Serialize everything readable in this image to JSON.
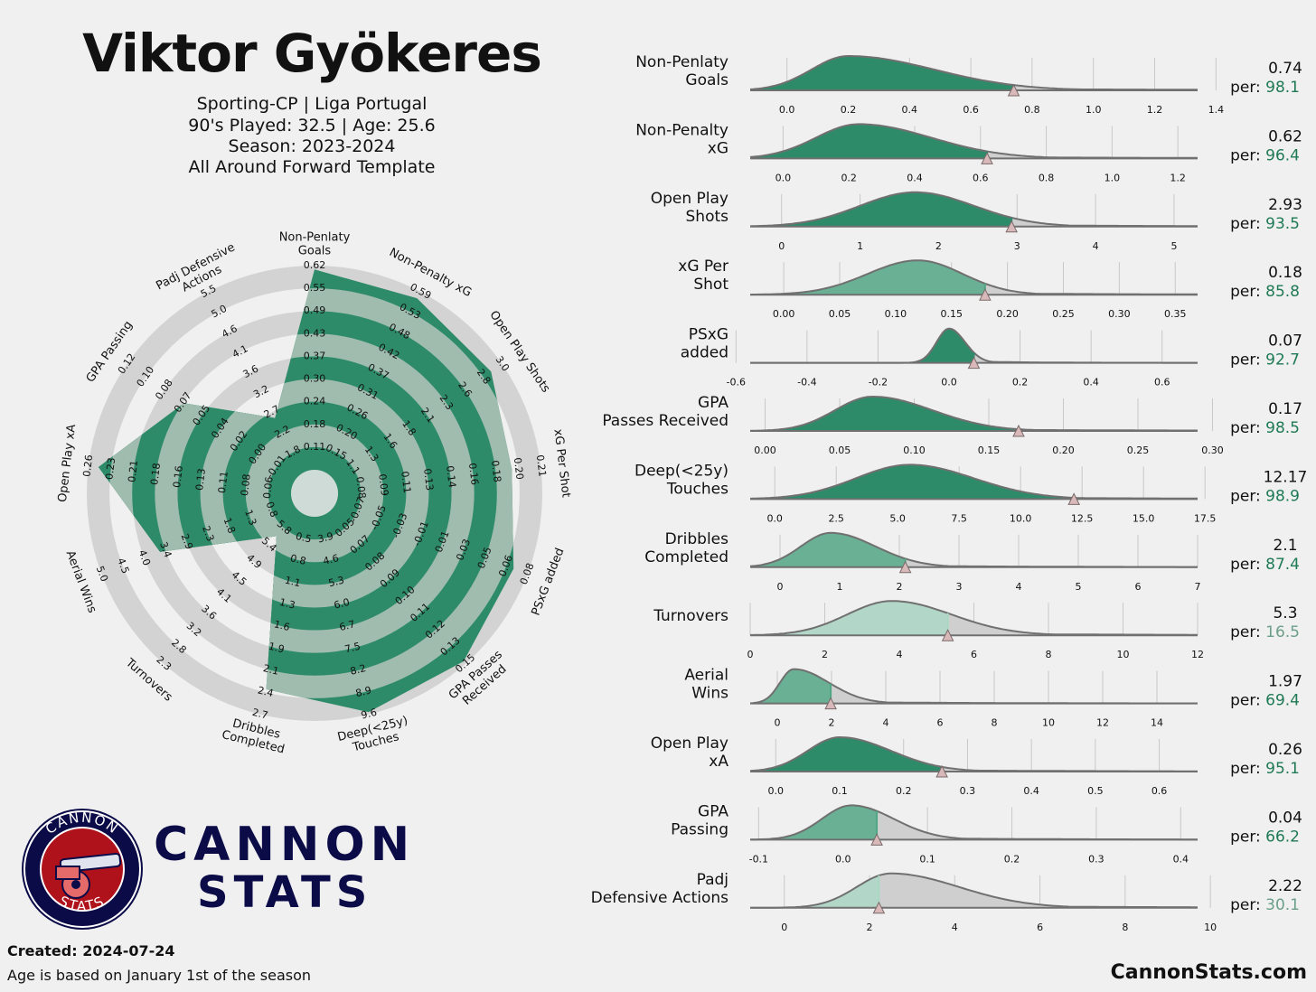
{
  "header": {
    "title": "Viktor Gyökeres",
    "team_league": "Sporting-CP | Liga Portugal",
    "played_age": "90's Played: 32.5 | Age: 25.6",
    "season": "Season: 2023-2024",
    "template": "All Around Forward Template"
  },
  "footer": {
    "created": "Created: 2024-07-24",
    "note": "Age is based on January 1st of the season",
    "site": "CannonStats.com"
  },
  "logo": {
    "ring_top": "CANNON",
    "ring_bottom": "STATS",
    "word1": "CANNON",
    "word2": "STATS"
  },
  "colors": {
    "green": "#2e8b6a",
    "green_text": "#1f7a55",
    "light_green": "#a8d8c4",
    "grey_band": "#d3d3d3",
    "curve": "#707070",
    "marker": "#d8b8b8",
    "brand_navy": "#0b0b48",
    "logo_red": "#b0121b"
  },
  "chart_data": [
    {
      "type": "radar",
      "axes": [
        {
          "label": "Non-Penlaty\nGoals",
          "ticks": [
            "0.11",
            "0.18",
            "0.24",
            "0.30",
            "0.37",
            "0.43",
            "0.49",
            "0.55",
            "0.62"
          ],
          "percentile": 98.1
        },
        {
          "label": "Non-Penalty xG",
          "ticks": [
            "0.15",
            "0.20",
            "0.26",
            "0.31",
            "0.37",
            "0.42",
            "0.48",
            "0.53",
            "0.59"
          ],
          "percentile": 96.4
        },
        {
          "label": "Open Play Shots",
          "ticks": [
            "1.1",
            "1.3",
            "1.6",
            "1.8",
            "2.1",
            "2.3",
            "2.6",
            "2.8",
            "3.0"
          ],
          "percentile": 93.5
        },
        {
          "label": "xG Per Shot",
          "ticks": [
            "0.08",
            "0.09",
            "0.11",
            "0.13",
            "0.14",
            "0.16",
            "0.18",
            "0.20",
            "0.21"
          ],
          "percentile": 85.8
        },
        {
          "label": "PSxG added",
          "ticks": [
            "-0.07",
            "-0.05",
            "-0.03",
            "-0.01",
            "0.01",
            "0.03",
            "0.05",
            "0.06",
            "0.08"
          ],
          "percentile": 92.7
        },
        {
          "label": "GPA Passes\nReceived",
          "ticks": [
            "0.05",
            "0.07",
            "0.08",
            "0.09",
            "0.10",
            "0.11",
            "0.12",
            "0.13",
            "0.15"
          ],
          "percentile": 98.5
        },
        {
          "label": "Deep(<25y)\nTouches",
          "ticks": [
            "3.9",
            "4.6",
            "5.3",
            "6.0",
            "6.7",
            "7.5",
            "8.2",
            "8.9",
            "9.6"
          ],
          "percentile": 98.9
        },
        {
          "label": "Dribbles\nCompleted",
          "ticks": [
            "0.5",
            "0.8",
            "1.1",
            "1.3",
            "1.6",
            "1.9",
            "2.1",
            "2.4",
            "2.7"
          ],
          "percentile": 87.4
        },
        {
          "label": "Turnovers",
          "ticks": [
            "5.8",
            "5.4",
            "4.9",
            "4.5",
            "4.1",
            "3.6",
            "3.2",
            "2.8",
            "2.3"
          ],
          "percentile": 16.5
        },
        {
          "label": "Aerial Wins",
          "ticks": [
            "0.8",
            "1.3",
            "1.8",
            "2.3",
            "2.9",
            "3.4",
            "4.0",
            "4.5",
            "5.0"
          ],
          "percentile": 69.4
        },
        {
          "label": "Open Play xA",
          "ticks": [
            "0.06",
            "0.08",
            "0.11",
            "0.13",
            "0.16",
            "0.18",
            "0.21",
            "0.23",
            "0.26"
          ],
          "percentile": 95.1
        },
        {
          "label": "GPA Passing",
          "ticks": [
            "-0.01",
            "0.00",
            "0.02",
            "0.04",
            "0.05",
            "0.07",
            "0.08",
            "0.10",
            "0.12"
          ],
          "percentile": 66.2
        },
        {
          "label": "Padj Defensive\nActions",
          "ticks": [
            "1.8",
            "2.2",
            "2.7",
            "3.2",
            "3.6",
            "4.1",
            "4.6",
            "5.0",
            "5.5"
          ],
          "percentile": 30.1
        }
      ]
    },
    {
      "type": "area",
      "kind": "density-distributions",
      "panels": [
        {
          "label": "Non-Penlaty\nGoals",
          "value": "0.74",
          "percentile": "98.1",
          "xrange": [
            -0.12,
            1.34
          ],
          "ticks": [
            "0.0",
            "0.2",
            "0.4",
            "0.6",
            "0.8",
            "1.0",
            "1.2",
            "1.4"
          ],
          "peak": 0.2,
          "spread_left": 0.12,
          "spread_right": 0.28,
          "player": 0.74,
          "highlight": "strong"
        },
        {
          "label": "Non-Penalty\nxG",
          "value": "0.62",
          "percentile": "96.4",
          "xrange": [
            -0.1,
            1.26
          ],
          "ticks": [
            "0.0",
            "0.2",
            "0.4",
            "0.6",
            "0.8",
            "1.0",
            "1.2"
          ],
          "peak": 0.23,
          "spread_left": 0.13,
          "spread_right": 0.22,
          "player": 0.62,
          "highlight": "strong"
        },
        {
          "label": "Open Play\nShots",
          "value": "2.93",
          "percentile": "93.5",
          "xrange": [
            -0.4,
            5.3
          ],
          "ticks": [
            "0",
            "1",
            "2",
            "3",
            "4",
            "5"
          ],
          "peak": 1.7,
          "spread_left": 0.7,
          "spread_right": 0.75,
          "player": 2.93,
          "highlight": "strong"
        },
        {
          "label": "xG Per\nShot",
          "value": "0.18",
          "percentile": "85.8",
          "xrange": [
            -0.03,
            0.37
          ],
          "ticks": [
            "0.00",
            "0.05",
            "0.10",
            "0.15",
            "0.20",
            "0.25",
            "0.30",
            "0.35"
          ],
          "peak": 0.12,
          "spread_left": 0.045,
          "spread_right": 0.04,
          "player": 0.18,
          "highlight": "medium"
        },
        {
          "label": "PSxG\nadded",
          "value": "0.07",
          "percentile": "92.7",
          "xrange": [
            -0.56,
            0.7
          ],
          "ticks": [
            "-0.6",
            "-0.4",
            "-0.2",
            "0.0",
            "0.2",
            "0.4",
            "0.6"
          ],
          "peak": 0.0,
          "spread_left": 0.035,
          "spread_right": 0.045,
          "player": 0.07,
          "highlight": "strong"
        },
        {
          "label": "GPA\nPasses Received",
          "value": "0.17",
          "percentile": "98.5",
          "xrange": [
            -0.01,
            0.29
          ],
          "ticks": [
            "0.00",
            "0.05",
            "0.10",
            "0.15",
            "0.20",
            "0.25",
            "0.30"
          ],
          "peak": 0.072,
          "spread_left": 0.025,
          "spread_right": 0.04,
          "player": 0.17,
          "highlight": "strong"
        },
        {
          "label": "Deep(<25y)\nTouches",
          "value": "12.17",
          "percentile": "98.9",
          "xrange": [
            -1.0,
            17.2
          ],
          "ticks": [
            "0.0",
            "2.5",
            "5.0",
            "7.5",
            "10.0",
            "12.5",
            "15.0",
            "17.5"
          ],
          "peak": 5.5,
          "spread_left": 2.2,
          "spread_right": 2.6,
          "player": 12.17,
          "highlight": "strong"
        },
        {
          "label": "Dribbles\nCompleted",
          "value": "2.1",
          "percentile": "87.4",
          "xrange": [
            -0.5,
            7.0
          ],
          "ticks": [
            "0",
            "1",
            "2",
            "3",
            "4",
            "5",
            "6",
            "7"
          ],
          "peak": 0.85,
          "spread_left": 0.5,
          "spread_right": 0.75,
          "player": 2.1,
          "highlight": "medium"
        },
        {
          "label": "Turnovers",
          "value": "5.3",
          "percentile": "16.5",
          "xrange": [
            0,
            12
          ],
          "ticks": [
            "0",
            "2",
            "4",
            "6",
            "8",
            "10",
            "12"
          ],
          "peak": 3.8,
          "spread_left": 1.2,
          "spread_right": 1.6,
          "player": 5.3,
          "highlight": "weak"
        },
        {
          "label": "Aerial\nWins",
          "value": "1.97",
          "percentile": "69.4",
          "xrange": [
            -1.0,
            15.5
          ],
          "ticks": [
            "0",
            "2",
            "4",
            "6",
            "8",
            "10",
            "12",
            "14"
          ],
          "peak": 0.6,
          "spread_left": 0.5,
          "spread_right": 1.3,
          "player": 1.97,
          "highlight": "medium"
        },
        {
          "label": "Open Play\nxA",
          "value": "0.26",
          "percentile": "95.1",
          "xrange": [
            -0.04,
            0.66
          ],
          "ticks": [
            "0.0",
            "0.1",
            "0.2",
            "0.3",
            "0.4",
            "0.5",
            "0.6"
          ],
          "peak": 0.1,
          "spread_left": 0.05,
          "spread_right": 0.08,
          "player": 0.26,
          "highlight": "strong"
        },
        {
          "label": "GPA\nPassing",
          "value": "0.04",
          "percentile": "66.2",
          "xrange": [
            -0.11,
            0.42
          ],
          "ticks": [
            "-0.1",
            "0.0",
            "0.1",
            "0.2",
            "0.3",
            "0.4"
          ],
          "peak": 0.01,
          "spread_left": 0.035,
          "spread_right": 0.05,
          "player": 0.04,
          "highlight": "medium"
        },
        {
          "label": "Padj\nDefensive Actions",
          "value": "2.22",
          "percentile": "30.1",
          "xrange": [
            -0.8,
            9.7
          ],
          "ticks": [
            "0",
            "2",
            "4",
            "6",
            "8",
            "10"
          ],
          "peak": 2.5,
          "spread_left": 0.8,
          "spread_right": 1.6,
          "player": 2.22,
          "highlight": "weak"
        }
      ],
      "per_label": "per:"
    }
  ]
}
